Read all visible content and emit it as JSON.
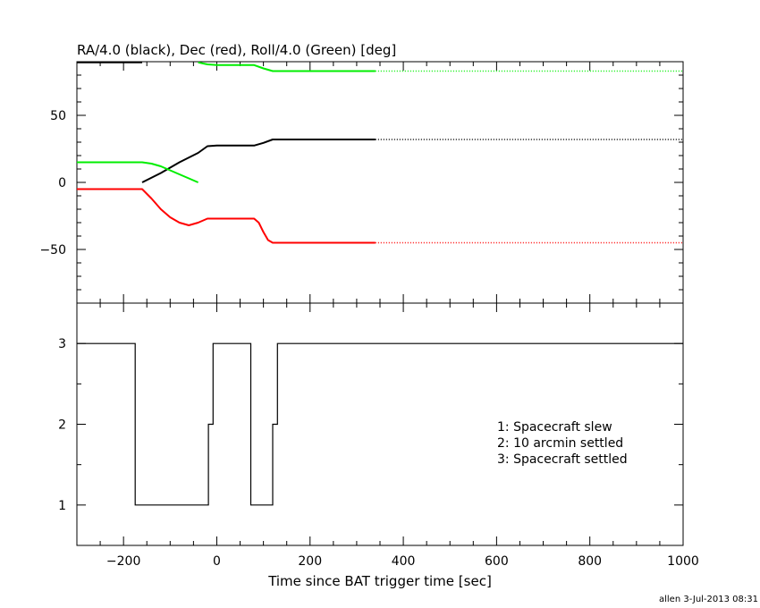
{
  "chart_data": [
    {
      "type": "line",
      "title": "RA/4.0 (black), Dec (red), Roll/4.0 (Green) [deg]",
      "xlim": [
        -300,
        1000
      ],
      "ylim": [
        -90,
        90
      ],
      "y_ticks": [
        -50,
        0,
        50
      ],
      "grid": false,
      "series": [
        {
          "color": "#000000",
          "segments": [
            {
              "style": "solid",
              "points": [
                [
                  -300,
                  89.5
                ],
                [
                  -160,
                  89.5
                ]
              ]
            },
            {
              "style": "solid",
              "points": [
                [
                  -160,
                  0
                ],
                [
                  -120,
                  7
                ],
                [
                  -80,
                  15
                ],
                [
                  -40,
                  22
                ],
                [
                  -20,
                  27
                ],
                [
                  0,
                  27.5
                ],
                [
                  40,
                  27.5
                ],
                [
                  80,
                  27.5
                ],
                [
                  100,
                  29.5
                ],
                [
                  120,
                  32
                ],
                [
                  340,
                  32
                ]
              ]
            },
            {
              "style": "dotted",
              "points": [
                [
                  340,
                  32
                ],
                [
                  1000,
                  32
                ]
              ]
            }
          ]
        },
        {
          "color": "#ff0000",
          "segments": [
            {
              "style": "solid",
              "points": [
                [
                  -300,
                  -5
                ],
                [
                  -160,
                  -5
                ],
                [
                  -140,
                  -12
                ],
                [
                  -120,
                  -20
                ],
                [
                  -100,
                  -26
                ],
                [
                  -80,
                  -30
                ],
                [
                  -60,
                  -32
                ],
                [
                  -40,
                  -30
                ],
                [
                  -20,
                  -27
                ],
                [
                  0,
                  -27
                ],
                [
                  40,
                  -27
                ],
                [
                  80,
                  -27
                ],
                [
                  90,
                  -30
                ],
                [
                  100,
                  -37
                ],
                [
                  110,
                  -43
                ],
                [
                  120,
                  -45
                ],
                [
                  340,
                  -45
                ]
              ]
            },
            {
              "style": "dotted",
              "points": [
                [
                  340,
                  -45
                ],
                [
                  1000,
                  -45
                ]
              ]
            }
          ]
        },
        {
          "color": "#00ee00",
          "segments": [
            {
              "style": "solid",
              "points": [
                [
                  -300,
                  15
                ],
                [
                  -160,
                  15
                ],
                [
                  -140,
                  14
                ],
                [
                  -120,
                  12
                ],
                [
                  -100,
                  9
                ],
                [
                  -80,
                  6
                ],
                [
                  -60,
                  3
                ],
                [
                  -40,
                  0
                ]
              ]
            },
            {
              "style": "solid",
              "points": [
                [
                  -40,
                  89.5
                ],
                [
                  -20,
                  88
                ],
                [
                  0,
                  87.5
                ],
                [
                  80,
                  87.5
                ],
                [
                  100,
                  85
                ],
                [
                  120,
                  83
                ],
                [
                  340,
                  83
                ]
              ]
            },
            {
              "style": "dotted",
              "points": [
                [
                  340,
                  83
                ],
                [
                  1000,
                  83
                ]
              ]
            }
          ]
        }
      ]
    },
    {
      "type": "line",
      "xlim": [
        -300,
        1000
      ],
      "ylim": [
        0.5,
        3.5
      ],
      "y_ticks": [
        1,
        2,
        3
      ],
      "xlabel": "Time since BAT trigger time [sec]",
      "x_ticks": [
        -200,
        0,
        200,
        400,
        600,
        800,
        1000
      ],
      "x_tick_labels": [
        "−200",
        "0",
        "200",
        "400",
        "600",
        "800",
        "1000"
      ],
      "grid": false,
      "legend_position": "bottom-right",
      "legend": [
        "1: Spacecraft slew",
        "2: 10 arcmin settled",
        "3: Spacecraft settled"
      ],
      "series": [
        {
          "color": "#000000",
          "step_points": [
            [
              -300,
              3
            ],
            [
              -175,
              3
            ],
            [
              -175,
              1
            ],
            [
              -18,
              1
            ],
            [
              -18,
              2
            ],
            [
              -8,
              2
            ],
            [
              -8,
              3
            ],
            [
              73,
              3
            ],
            [
              73,
              1
            ],
            [
              120,
              1
            ],
            [
              120,
              2
            ],
            [
              130,
              2
            ],
            [
              130,
              3
            ],
            [
              1000,
              3
            ]
          ]
        }
      ]
    }
  ],
  "footer": {
    "credit": "allen  3-Jul-2013 08:31"
  }
}
